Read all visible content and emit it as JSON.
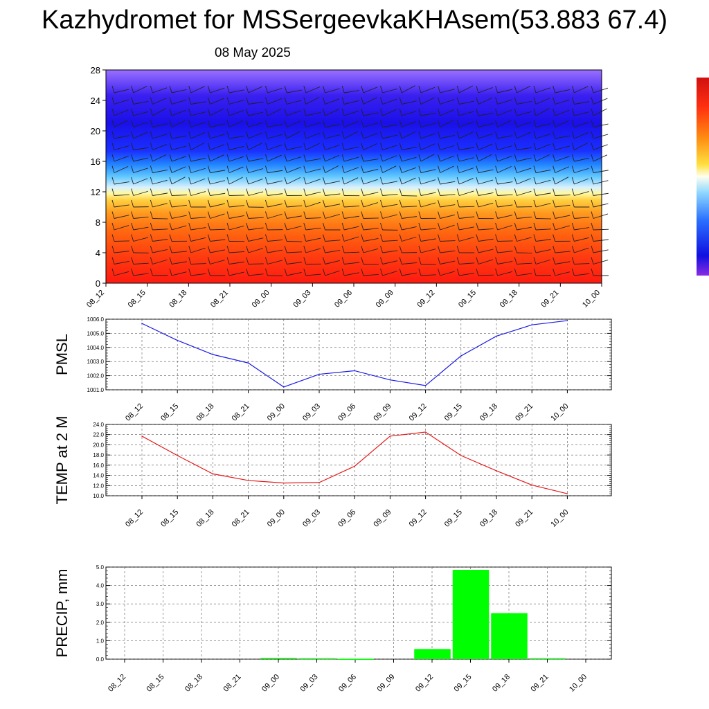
{
  "title": "Kazhydromet for MSSergeevkaKHAsem(53.883 67.4)",
  "subtitle": "08 May 2025",
  "time_labels": [
    "08_12",
    "08_15",
    "08_18",
    "08_21",
    "09_00",
    "09_03",
    "09_06",
    "09_09",
    "09_12",
    "09_15",
    "09_18",
    "09_21",
    "10_00"
  ],
  "colors": {
    "pmsl": "#1a1ae6",
    "temp": "#e61a1a",
    "precip": "#00ff00",
    "grid": "#555555"
  },
  "chart_data": [
    {
      "type": "heatmap",
      "title": "",
      "ylim": [
        0,
        28
      ],
      "yticks": [
        "0",
        "4",
        "8",
        "12",
        "16",
        "20",
        "24",
        "28"
      ],
      "categories": [
        "08_12",
        "08_15",
        "08_18",
        "08_21",
        "09_00",
        "09_03",
        "09_06",
        "09_09",
        "09_12",
        "09_15",
        "09_18",
        "09_21",
        "10_00"
      ],
      "colorbar": "violet-blue-cyan-yellow-orange-red",
      "overlay": "wind barbs"
    },
    {
      "type": "line",
      "ylabel": "PMSL",
      "ylim": [
        1001.0,
        1006.0
      ],
      "yticks": [
        "1001.0",
        "1002.0",
        "1003.0",
        "1004.0",
        "1005.0",
        "1006.0"
      ],
      "categories": [
        "08_12",
        "08_15",
        "08_18",
        "08_21",
        "09_00",
        "09_03",
        "09_06",
        "09_09",
        "09_12",
        "09_15",
        "09_18",
        "09_21",
        "10_00"
      ],
      "values": [
        1005.7,
        1004.5,
        1003.5,
        1002.9,
        1001.2,
        1002.1,
        1002.35,
        1001.7,
        1001.3,
        1003.4,
        1004.8,
        1005.6,
        1005.9
      ]
    },
    {
      "type": "line",
      "ylabel": "TEMP at 2 M",
      "ylim": [
        10.0,
        24.0
      ],
      "yticks": [
        "10.0",
        "12.0",
        "14.0",
        "16.0",
        "18.0",
        "20.0",
        "22.0",
        "24.0"
      ],
      "categories": [
        "08_12",
        "08_15",
        "08_18",
        "08_21",
        "09_00",
        "09_03",
        "09_06",
        "09_09",
        "09_12",
        "09_15",
        "09_18",
        "09_21",
        "10_00"
      ],
      "values": [
        21.7,
        17.9,
        14.3,
        13.0,
        12.5,
        12.6,
        15.8,
        21.7,
        22.5,
        17.9,
        14.9,
        12.1,
        10.4
      ]
    },
    {
      "type": "bar",
      "ylabel": "PRECIP, mm",
      "ylim": [
        0.0,
        5.0
      ],
      "yticks": [
        "0.0",
        "1.0",
        "2.0",
        "3.0",
        "4.0",
        "5.0"
      ],
      "categories": [
        "08_12",
        "08_15",
        "08_18",
        "08_21",
        "09_00",
        "09_03",
        "09_06",
        "09_09",
        "09_12",
        "09_15",
        "09_18",
        "09_21",
        "10_00"
      ],
      "values": [
        0,
        0,
        0,
        0.0,
        0.07,
        0.05,
        0.02,
        0.0,
        0.55,
        4.85,
        2.5,
        0.05,
        0
      ]
    }
  ]
}
